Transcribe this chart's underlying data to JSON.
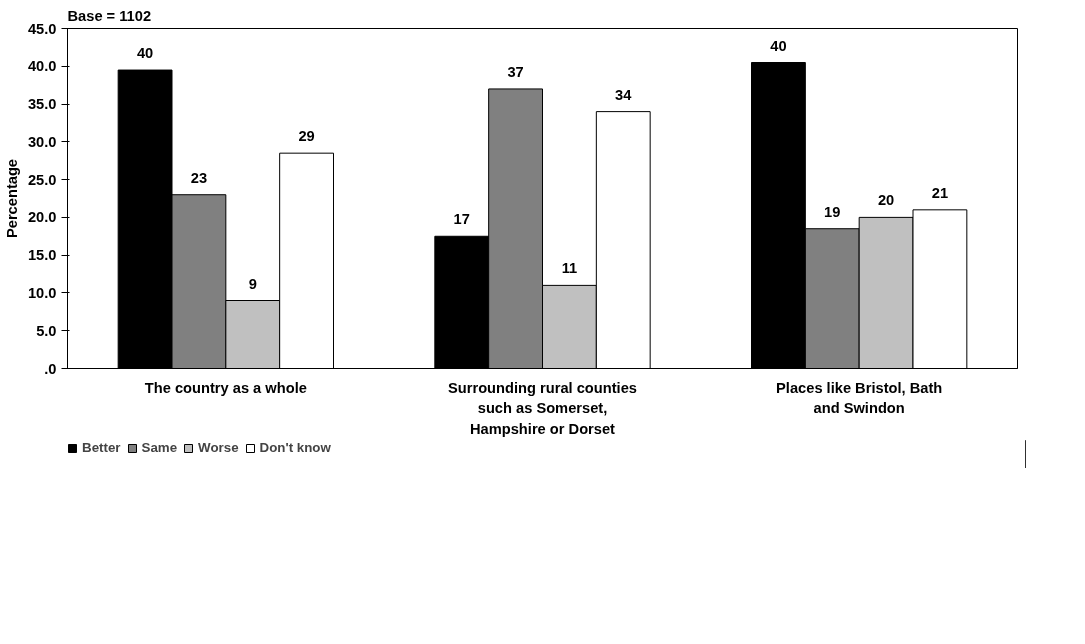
{
  "chart_data": {
    "type": "bar",
    "ylabel": "Percentage",
    "annotations": [
      "Base = 1102"
    ],
    "categories": [
      "The country as a whole",
      "Surrounding rural counties such as Somerset, Hampshire or Dorset",
      "Places like Bristol, Bath and Swindon"
    ],
    "series": [
      {
        "name": "Better",
        "color": "#000000",
        "values": [
          39.5,
          17.5,
          40.5
        ],
        "value_labels": [
          "40",
          "17",
          "40"
        ]
      },
      {
        "name": "Same",
        "color": "#808080",
        "values": [
          23,
          37,
          18.5
        ],
        "value_labels": [
          "23",
          "37",
          "19"
        ]
      },
      {
        "name": "Worse",
        "color": "#c0c0c0",
        "values": [
          9,
          11,
          20
        ],
        "value_labels": [
          "9",
          "11",
          "20"
        ]
      },
      {
        "name": "Don't know",
        "color": "#ffffff",
        "values": [
          28.5,
          34,
          21
        ],
        "value_labels": [
          "29",
          "34",
          "21"
        ]
      }
    ],
    "ylim": [
      0,
      45
    ],
    "yticks": [
      {
        "value": 0,
        "label": ".0"
      },
      {
        "value": 5,
        "label": "5.0"
      },
      {
        "value": 10,
        "label": "10.0"
      },
      {
        "value": 15,
        "label": "15.0"
      },
      {
        "value": 20,
        "label": "20.0"
      },
      {
        "value": 25,
        "label": "25.0"
      },
      {
        "value": 30,
        "label": "30.0"
      },
      {
        "value": 35,
        "label": "35.0"
      },
      {
        "value": 40,
        "label": "40.0"
      },
      {
        "value": 45,
        "label": "45.0"
      }
    ],
    "grid": false,
    "legend": "bottom left"
  }
}
